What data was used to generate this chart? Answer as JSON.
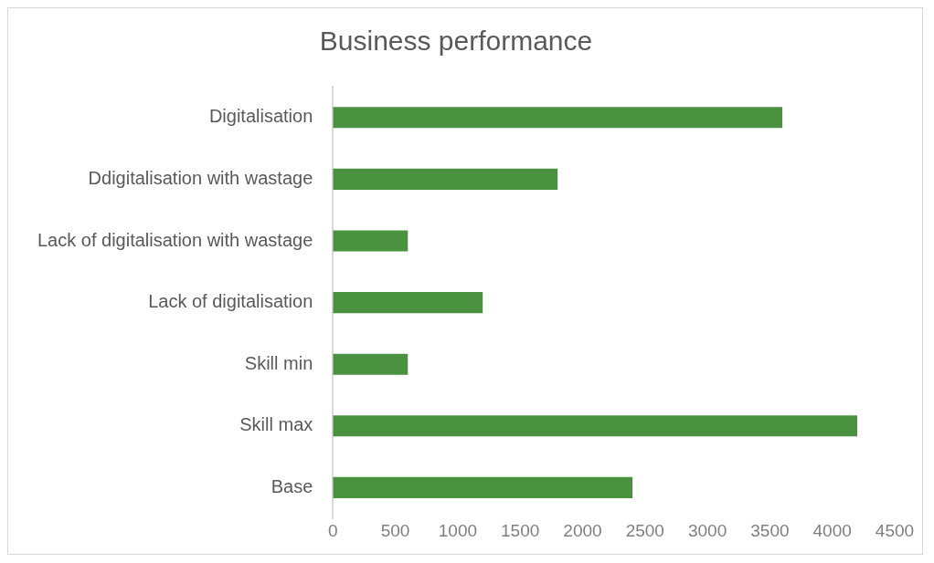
{
  "chart_data": {
    "type": "bar",
    "title": "Business performance",
    "orientation": "horizontal",
    "categories": [
      "Digitalisation",
      "Ddigitalisation with wastage",
      "Lack of digitalisation with wastage",
      "Lack of digitalisation",
      "Skill min",
      "Skill max",
      "Base"
    ],
    "values": [
      3600,
      1800,
      600,
      1200,
      600,
      4200,
      2400
    ],
    "color": "#4a9240",
    "xlim": [
      0,
      4500
    ],
    "xticks": [
      0,
      500,
      1000,
      1500,
      2000,
      2500,
      3000,
      3500,
      4000,
      4500
    ],
    "grid": false,
    "legend": false
  }
}
